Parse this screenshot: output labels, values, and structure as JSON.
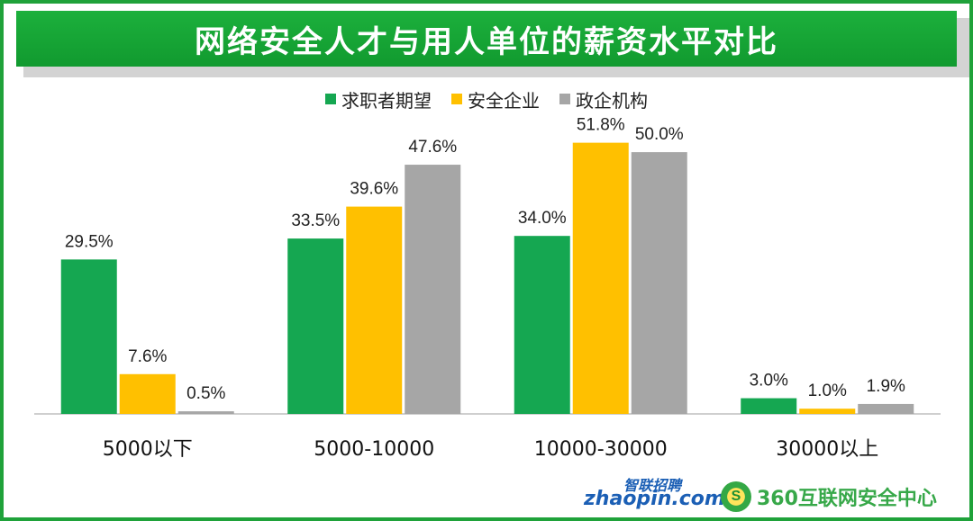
{
  "title": "网络安全人才与用人单位的薪资水平对比",
  "chart_data": {
    "type": "bar",
    "title": "网络安全人才与用人单位的薪资水平对比",
    "categories": [
      "5000以下",
      "5000-10000",
      "10000-30000",
      "30000以上"
    ],
    "series": [
      {
        "name": "求职者期望",
        "color": "#15a751",
        "values": [
          29.5,
          33.5,
          34.0,
          3.0
        ],
        "labels": [
          "29.5%",
          "33.5%",
          "34.0%",
          "3.0%"
        ]
      },
      {
        "name": "安全企业",
        "color": "#ffc000",
        "values": [
          7.6,
          39.6,
          51.8,
          1.0
        ],
        "labels": [
          "7.6%",
          "39.6%",
          "51.8%",
          "1.0%"
        ]
      },
      {
        "name": "政企机构",
        "color": "#a6a6a6",
        "values": [
          0.5,
          47.6,
          50.0,
          1.9
        ],
        "labels": [
          "0.5%",
          "47.6%",
          "50.0%",
          "1.9%"
        ]
      }
    ],
    "ylim": [
      0,
      55
    ],
    "ylabel": "",
    "xlabel": "",
    "grid": false,
    "legend": "top-center",
    "unit": "%"
  },
  "logos": {
    "zhaopin_cn": "智联招聘",
    "zhaopin_en": "zhaopin.com",
    "badge": "S",
    "center": "360互联网安全中心"
  }
}
